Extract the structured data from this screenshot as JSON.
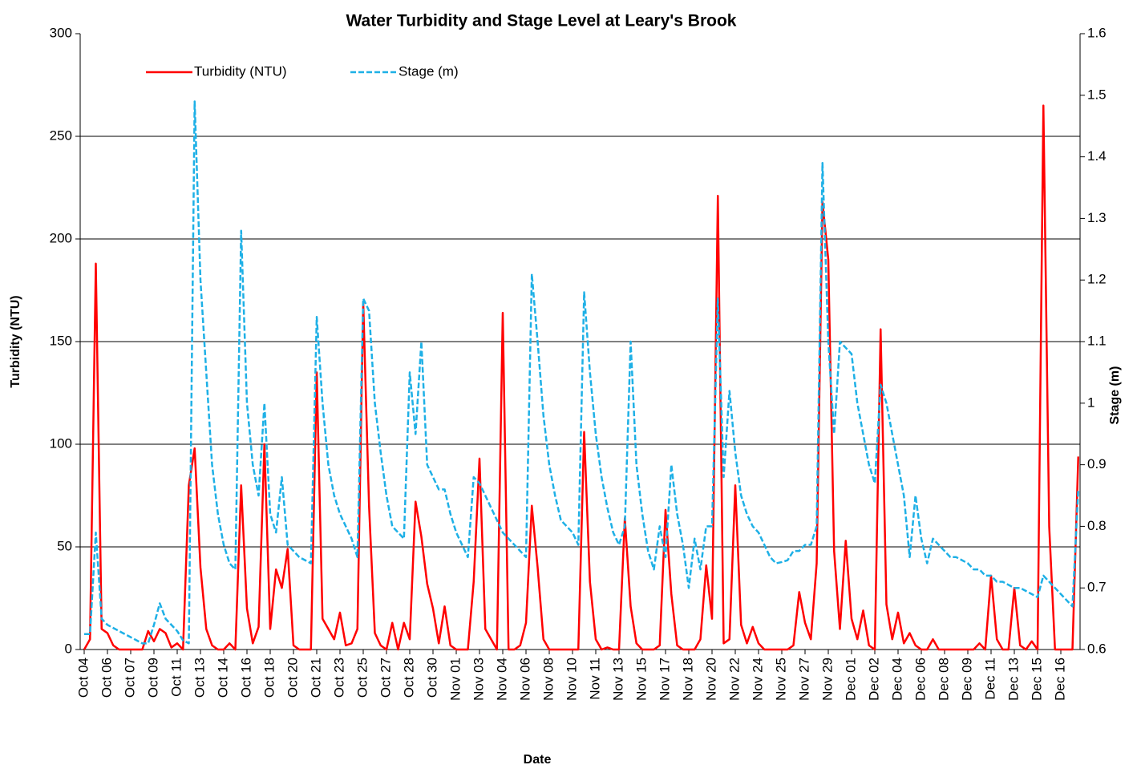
{
  "chart_data": {
    "type": "line",
    "title": "Water Turbidity and Stage Level at Leary's Brook",
    "x_label": "Date",
    "y_label": "Turbidity (NTU)",
    "y2_label": "Stage (m)",
    "categories": [
      "Oct 04",
      null,
      null,
      null,
      "Oct 06",
      null,
      null,
      null,
      "Oct 07",
      null,
      null,
      null,
      "Oct 09",
      null,
      null,
      null,
      "Oct 11",
      null,
      null,
      null,
      "Oct 13",
      null,
      null,
      null,
      "Oct 14",
      null,
      null,
      null,
      "Oct 16",
      null,
      null,
      null,
      "Oct 18",
      null,
      null,
      null,
      "Oct 20",
      null,
      null,
      null,
      "Oct 21",
      null,
      null,
      null,
      "Oct 23",
      null,
      null,
      null,
      "Oct 25",
      null,
      null,
      null,
      "Oct 27",
      null,
      null,
      null,
      "Oct 28",
      null,
      null,
      null,
      "Oct 30",
      null,
      null,
      null,
      "Nov 01",
      null,
      null,
      null,
      "Nov 03",
      null,
      null,
      null,
      "Nov 04",
      null,
      null,
      null,
      "Nov 06",
      null,
      null,
      null,
      "Nov 08",
      null,
      null,
      null,
      "Nov 10",
      null,
      null,
      null,
      "Nov 11",
      null,
      null,
      null,
      "Nov 13",
      null,
      null,
      null,
      "Nov 15",
      null,
      null,
      null,
      "Nov 17",
      null,
      null,
      null,
      "Nov 18",
      null,
      null,
      null,
      "Nov 20",
      null,
      null,
      null,
      "Nov 22",
      null,
      null,
      null,
      "Nov 24",
      null,
      null,
      null,
      "Nov 25",
      null,
      null,
      null,
      "Nov 27",
      null,
      null,
      null,
      "Nov 29",
      null,
      null,
      null,
      "Dec 01",
      null,
      null,
      null,
      "Dec 02",
      null,
      null,
      null,
      "Dec 04",
      null,
      null,
      null,
      "Dec 06",
      null,
      null,
      null,
      "Dec 08",
      null,
      null,
      null,
      "Dec 09",
      null,
      null,
      null,
      "Dec 11",
      null,
      null,
      null,
      "Dec 13",
      null,
      null,
      null,
      "Dec 15",
      null,
      null,
      null,
      "Dec 16",
      null,
      null,
      null
    ],
    "series": [
      {
        "name": "Turbidity (NTU)",
        "color": "#ff0000",
        "style": "solid",
        "values": [
          0,
          5,
          188,
          10,
          8,
          2,
          0,
          0,
          0,
          0,
          0,
          9,
          4,
          10,
          8,
          1,
          3,
          0,
          80,
          98,
          40,
          10,
          2,
          0,
          0,
          3,
          0,
          80,
          20,
          3,
          11,
          100,
          10,
          39,
          30,
          49,
          2,
          0,
          0,
          0,
          135,
          15,
          10,
          5,
          18,
          2,
          3,
          10,
          169,
          70,
          8,
          2,
          0,
          13,
          0,
          13,
          5,
          72,
          55,
          32,
          20,
          3,
          21,
          2,
          0,
          0,
          0,
          33,
          93,
          10,
          5,
          0,
          164,
          0,
          0,
          2,
          13,
          70,
          40,
          5,
          0,
          0,
          0,
          0,
          0,
          0,
          106,
          33,
          5,
          0,
          1,
          0,
          0,
          64,
          21,
          3,
          0,
          0,
          0,
          2,
          68,
          27,
          2,
          0,
          0,
          0,
          5,
          41,
          15,
          221,
          3,
          5,
          80,
          12,
          3,
          11,
          3,
          0,
          0,
          0,
          0,
          0,
          2,
          28,
          13,
          5,
          42,
          218,
          190,
          48,
          10,
          53,
          15,
          5,
          19,
          2,
          0,
          156,
          22,
          5,
          18,
          3,
          8,
          2,
          0,
          0,
          5,
          0,
          0,
          0,
          0,
          0,
          0,
          0,
          3,
          0,
          36,
          5,
          0,
          0,
          30,
          2,
          0,
          4,
          0,
          265,
          60,
          0,
          0,
          0,
          0,
          94
        ]
      },
      {
        "name": "Stage (m)",
        "color": "#1eb0e6",
        "style": "dashed",
        "axis": "y2",
        "values": [
          0.625,
          0.625,
          0.79,
          0.65,
          0.64,
          0.635,
          0.63,
          0.625,
          0.62,
          0.615,
          0.61,
          0.61,
          0.64,
          0.675,
          0.65,
          0.64,
          0.63,
          0.615,
          0.61,
          1.49,
          1.2,
          1.05,
          0.9,
          0.82,
          0.77,
          0.74,
          0.73,
          1.28,
          1.0,
          0.9,
          0.85,
          1.0,
          0.82,
          0.79,
          0.88,
          0.77,
          0.76,
          0.75,
          0.745,
          0.74,
          1.14,
          1.0,
          0.9,
          0.85,
          0.82,
          0.8,
          0.78,
          0.75,
          1.17,
          1.15,
          1.0,
          0.92,
          0.85,
          0.8,
          0.79,
          0.78,
          1.05,
          0.95,
          1.1,
          0.9,
          0.88,
          0.86,
          0.86,
          0.82,
          0.79,
          0.77,
          0.75,
          0.88,
          0.87,
          0.85,
          0.83,
          0.81,
          0.79,
          0.78,
          0.77,
          0.76,
          0.75,
          1.21,
          1.1,
          0.98,
          0.9,
          0.85,
          0.81,
          0.8,
          0.79,
          0.77,
          1.18,
          1.05,
          0.95,
          0.88,
          0.83,
          0.79,
          0.77,
          0.8,
          1.1,
          0.9,
          0.82,
          0.76,
          0.73,
          0.8,
          0.75,
          0.9,
          0.82,
          0.77,
          0.7,
          0.78,
          0.73,
          0.8,
          0.8,
          1.17,
          0.88,
          1.02,
          0.92,
          0.85,
          0.82,
          0.8,
          0.79,
          0.77,
          0.75,
          0.74,
          0.742,
          0.745,
          0.76,
          0.76,
          0.77,
          0.77,
          0.8,
          1.39,
          1.1,
          0.95,
          1.1,
          1.09,
          1.08,
          1.0,
          0.95,
          0.9,
          0.87,
          1.03,
          1.0,
          0.95,
          0.9,
          0.85,
          0.75,
          0.85,
          0.78,
          0.74,
          0.78,
          0.77,
          0.76,
          0.75,
          0.75,
          0.745,
          0.74,
          0.73,
          0.73,
          0.72,
          0.72,
          0.71,
          0.71,
          0.705,
          0.7,
          0.7,
          0.695,
          0.69,
          0.685,
          0.72,
          0.71,
          0.7,
          0.69,
          0.68,
          0.67,
          0.86
        ]
      }
    ],
    "ylim": [
      0,
      300
    ],
    "yticks": [
      0,
      50,
      100,
      150,
      200,
      250,
      300
    ],
    "y2lim": [
      0.6,
      1.6
    ],
    "y2ticks": [
      0.6,
      0.7,
      0.8,
      0.9,
      1,
      1.1,
      1.2,
      1.3,
      1.4,
      1.5,
      1.6
    ],
    "grid": true,
    "legend": "upper left"
  }
}
